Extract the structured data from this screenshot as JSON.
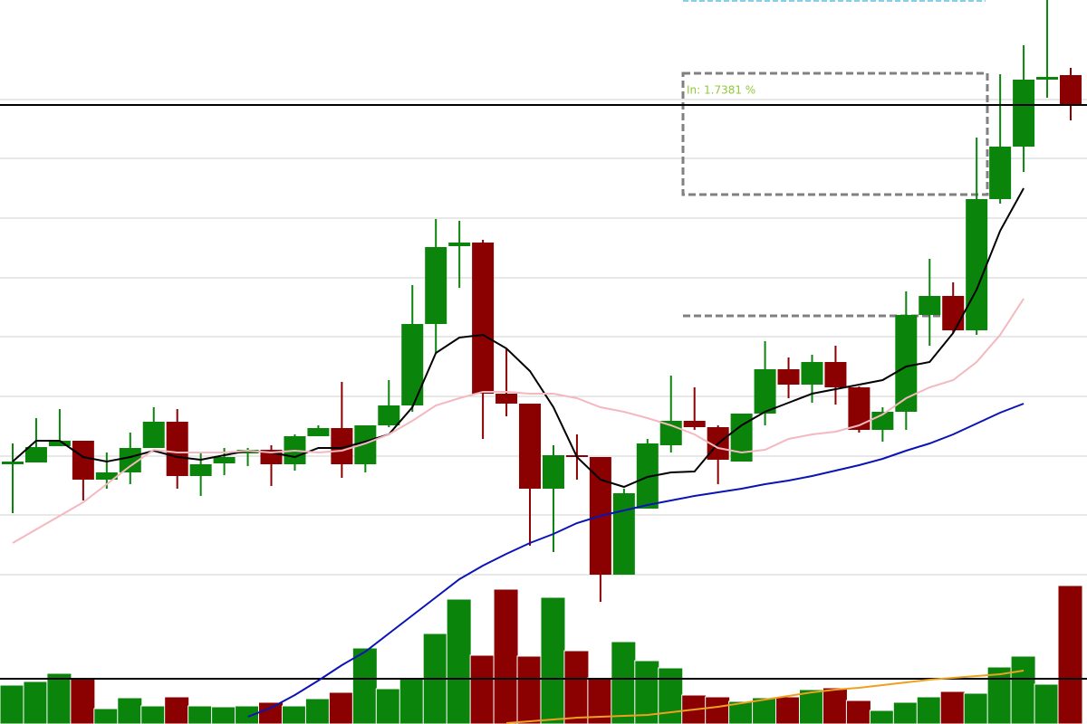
{
  "chart_data": {
    "type": "candlestick",
    "ylim": [
      0,
      800
    ],
    "y2lim": [
      0,
      800
    ],
    "yticks": [
      690,
      625,
      559,
      493,
      428,
      362,
      296,
      231,
      165
    ],
    "grid": true,
    "up_color": "#0b840b",
    "down_color": "#8b0000",
    "open": [
      287,
      289,
      307,
      313,
      270,
      278,
      305,
      334,
      274,
      288,
      299,
      303,
      287,
      318,
      327,
      287,
      330,
      352,
      442,
      528,
      532,
      365,
      354,
      260,
      297,
      295,
      165,
      238,
      308,
      335,
      328,
      290,
      343,
      392,
      375,
      400,
      372,
      325,
      345,
      452,
      473,
      435,
      580,
      638,
      712,
      717
    ],
    "high": [
      310,
      338,
      348,
      313,
      300,
      322,
      350,
      348,
      300,
      305,
      305,
      308,
      320,
      330,
      378,
      330,
      380,
      485,
      558,
      556,
      535,
      415,
      354,
      308,
      320,
      295,
      260,
      315,
      385,
      372,
      330,
      343,
      423,
      405,
      408,
      418,
      373,
      350,
      478,
      514,
      488,
      648,
      718,
      750,
      800,
      725
    ],
    "low": [
      233,
      289,
      307,
      247,
      260,
      265,
      305,
      260,
      252,
      275,
      285,
      263,
      280,
      318,
      272,
      278,
      328,
      345,
      410,
      482,
      315,
      340,
      197,
      190,
      270,
      135,
      165,
      238,
      300,
      325,
      265,
      290,
      330,
      360,
      355,
      353,
      322,
      312,
      325,
      418,
      432,
      430,
      575,
      610,
      692,
      667
    ],
    "close": [
      290,
      306,
      313,
      270,
      278,
      305,
      334,
      274,
      287,
      295,
      303,
      287,
      318,
      327,
      287,
      330,
      352,
      442,
      527,
      532,
      365,
      354,
      260,
      297,
      295,
      165,
      255,
      310,
      335,
      328,
      292,
      343,
      392,
      375,
      400,
      372,
      325,
      345,
      452,
      473,
      435,
      580,
      638,
      712,
      715,
      685
    ],
    "volume": [
      43,
      47,
      56,
      50,
      17,
      29,
      20,
      30,
      20,
      19,
      20,
      24,
      20,
      28,
      35,
      84,
      39,
      50,
      100,
      138,
      76,
      149,
      75,
      140,
      81,
      51,
      91,
      70,
      62,
      32,
      30,
      25,
      29,
      30,
      38,
      40,
      26,
      15,
      24,
      30,
      36,
      34,
      63,
      75,
      44,
      153
    ],
    "series": [
      {
        "color": "#000000",
        "values": [
          290,
          313,
          313,
          295,
          290,
          295,
          302,
          295,
          292,
          297,
          302,
          300,
          295,
          305,
          305,
          312,
          320,
          350,
          410,
          427,
          430,
          415,
          390,
          350,
          295,
          270,
          262,
          273,
          278,
          279,
          310,
          330,
          345,
          355,
          365,
          370,
          375,
          380,
          395,
          400,
          432,
          480,
          545,
          592,
          null,
          null
        ]
      },
      {
        "color": "#f4b8bf",
        "values": [
          200,
          215,
          230,
          245,
          265,
          285,
          303,
          300,
          300,
          300,
          302,
          300,
          302,
          300,
          302,
          310,
          320,
          335,
          352,
          360,
          367,
          367,
          365,
          365,
          360,
          350,
          345,
          338,
          330,
          320,
          305,
          300,
          303,
          315,
          320,
          323,
          330,
          342,
          360,
          372,
          380,
          400,
          430,
          470,
          null,
          null
        ]
      },
      {
        "color": "#0a14b4",
        "values": [
          null,
          null,
          null,
          null,
          null,
          null,
          null,
          null,
          null,
          null,
          8,
          18,
          32,
          48,
          65,
          80,
          100,
          120,
          140,
          160,
          175,
          188,
          200,
          210,
          222,
          230,
          236,
          242,
          247,
          252,
          256,
          260,
          265,
          269,
          274,
          280,
          286,
          293,
          302,
          310,
          320,
          332,
          344,
          354,
          null,
          null
        ]
      },
      {
        "color": "#f0a020",
        "axis": "y2",
        "values": [
          null,
          null,
          null,
          null,
          null,
          null,
          null,
          null,
          null,
          null,
          null,
          null,
          null,
          null,
          null,
          null,
          null,
          null,
          null,
          null,
          null,
          1,
          3,
          5,
          7,
          8,
          9,
          10,
          13,
          16,
          19,
          23,
          27,
          31,
          35,
          38,
          40,
          43,
          46,
          49,
          51,
          53,
          55,
          59,
          null,
          null
        ]
      }
    ],
    "hline": 684,
    "y2_hline": 50,
    "annotation": "In: 1.7381 %"
  }
}
